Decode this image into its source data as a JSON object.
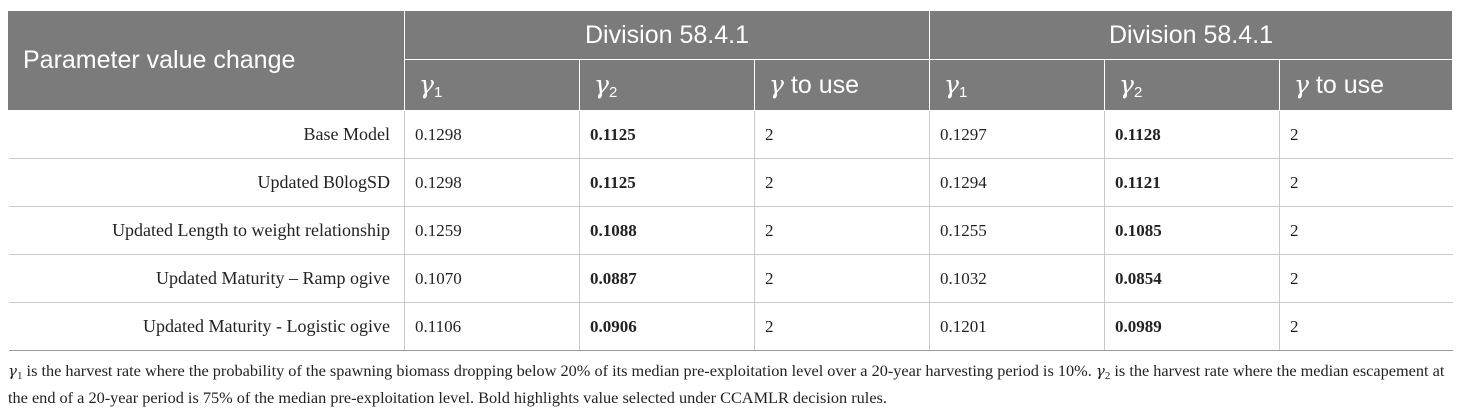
{
  "table": {
    "header": {
      "param_label": "Parameter value change",
      "divisions": [
        "Division 58.4.1",
        "Division 58.4.1"
      ],
      "subcolumns": [
        {
          "symbol": "γ",
          "sub": "1",
          "text": ""
        },
        {
          "symbol": "γ",
          "sub": "2",
          "text": ""
        },
        {
          "symbol": "γ",
          "sub": "",
          "text": " to use"
        },
        {
          "symbol": "γ",
          "sub": "1",
          "text": ""
        },
        {
          "symbol": "γ",
          "sub": "2",
          "text": ""
        },
        {
          "symbol": "γ",
          "sub": "",
          "text": " to use"
        }
      ]
    },
    "rows": [
      {
        "label": "Base Model",
        "values": [
          "0.1298",
          "0.1125",
          "2",
          "0.1297",
          "0.1128",
          "2"
        ]
      },
      {
        "label": "Updated B0logSD",
        "values": [
          "0.1298",
          "0.1125",
          "2",
          "0.1294",
          "0.1121",
          "2"
        ]
      },
      {
        "label": "Updated Length to weight relationship",
        "values": [
          "0.1259",
          "0.1088",
          "2",
          "0.1255",
          "0.1085",
          "2"
        ]
      },
      {
        "label": "Updated Maturity – Ramp ogive",
        "values": [
          "0.1070",
          "0.0887",
          "2",
          "0.1032",
          "0.0854",
          "2"
        ]
      },
      {
        "label": "Updated Maturity - Logistic ogive",
        "values": [
          "0.1106",
          "0.0906",
          "2",
          "0.1201",
          "0.0989",
          "2"
        ]
      }
    ],
    "bold_columns": [
      1,
      4
    ]
  },
  "footnote": {
    "g1_symbol": "γ",
    "g1_sub": "1",
    "part1": " is the harvest rate where the probability of the spawning biomass dropping below 20% of its median pre-exploitation level over a 20-year harvesting period is 10%. ",
    "g2_symbol": "γ",
    "g2_sub": "2",
    "part2": " is the harvest rate where the median escapement at the end of a 20-year period is 75% of the median pre-exploitation level. Bold highlights value selected under CCAMLR decision rules."
  }
}
